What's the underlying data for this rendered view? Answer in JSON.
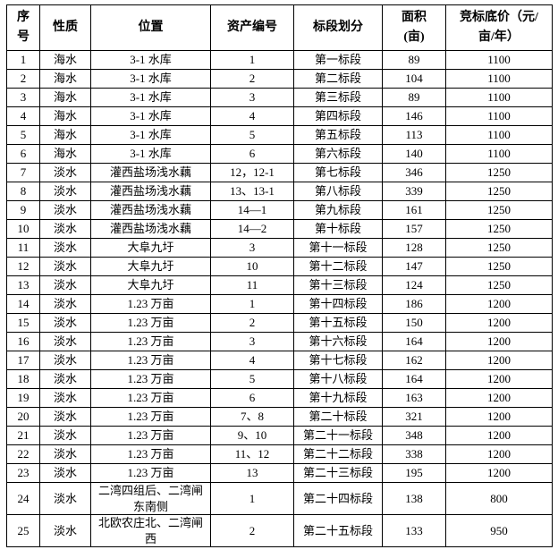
{
  "table": {
    "columns": [
      {
        "key": "index",
        "label": "序\n号"
      },
      {
        "key": "nature",
        "label": "性质"
      },
      {
        "key": "location",
        "label": "位置"
      },
      {
        "key": "asset_no",
        "label": "资产编号"
      },
      {
        "key": "section",
        "label": "标段划分"
      },
      {
        "key": "area",
        "label": "面积\n(亩)"
      },
      {
        "key": "price",
        "label": "竞标底价（元/\n亩/年）"
      }
    ],
    "rows": [
      [
        "1",
        "海水",
        "3-1 水库",
        "1",
        "第一标段",
        "89",
        "1100"
      ],
      [
        "2",
        "海水",
        "3-1 水库",
        "2",
        "第二标段",
        "104",
        "1100"
      ],
      [
        "3",
        "海水",
        "3-1 水库",
        "3",
        "第三标段",
        "89",
        "1100"
      ],
      [
        "4",
        "海水",
        "3-1 水库",
        "4",
        "第四标段",
        "146",
        "1100"
      ],
      [
        "5",
        "海水",
        "3-1 水库",
        "5",
        "第五标段",
        "113",
        "1100"
      ],
      [
        "6",
        "海水",
        "3-1 水库",
        "6",
        "第六标段",
        "140",
        "1100"
      ],
      [
        "7",
        "淡水",
        "灌西盐场浅水藕",
        "12，12-1",
        "第七标段",
        "346",
        "1250"
      ],
      [
        "8",
        "淡水",
        "灌西盐场浅水藕",
        "13、13-1",
        "第八标段",
        "339",
        "1250"
      ],
      [
        "9",
        "淡水",
        "灌西盐场浅水藕",
        "14—1",
        "第九标段",
        "161",
        "1250"
      ],
      [
        "10",
        "淡水",
        "灌西盐场浅水藕",
        "14—2",
        "第十标段",
        "157",
        "1250"
      ],
      [
        "11",
        "淡水",
        "大阜九圩",
        "3",
        "第十一标段",
        "128",
        "1250"
      ],
      [
        "12",
        "淡水",
        "大阜九圩",
        "10",
        "第十二标段",
        "147",
        "1250"
      ],
      [
        "13",
        "淡水",
        "大阜九圩",
        "11",
        "第十三标段",
        "124",
        "1250"
      ],
      [
        "14",
        "淡水",
        "1.23 万亩",
        "1",
        "第十四标段",
        "186",
        "1200"
      ],
      [
        "15",
        "淡水",
        "1.23 万亩",
        "2",
        "第十五标段",
        "150",
        "1200"
      ],
      [
        "16",
        "淡水",
        "1.23 万亩",
        "3",
        "第十六标段",
        "164",
        "1200"
      ],
      [
        "17",
        "淡水",
        "1.23 万亩",
        "4",
        "第十七标段",
        "162",
        "1200"
      ],
      [
        "18",
        "淡水",
        "1.23 万亩",
        "5",
        "第十八标段",
        "164",
        "1200"
      ],
      [
        "19",
        "淡水",
        "1.23 万亩",
        "6",
        "第十九标段",
        "163",
        "1200"
      ],
      [
        "20",
        "淡水",
        "1.23 万亩",
        "7、8",
        "第二十标段",
        "321",
        "1200"
      ],
      [
        "21",
        "淡水",
        "1.23 万亩",
        "9、10",
        "第二十一标段",
        "348",
        "1200"
      ],
      [
        "22",
        "淡水",
        "1.23 万亩",
        "11、12",
        "第二十二标段",
        "338",
        "1200"
      ],
      [
        "23",
        "淡水",
        "1.23 万亩",
        "13",
        "第二十三标段",
        "195",
        "1200"
      ],
      [
        "24",
        "淡水",
        "二湾四组后、二湾闸东南侧",
        "1",
        "第二十四标段",
        "138",
        "800"
      ],
      [
        "25",
        "淡水",
        "北欧农庄北、二湾闸西",
        "2",
        "第二十五标段",
        "133",
        "950"
      ]
    ]
  }
}
